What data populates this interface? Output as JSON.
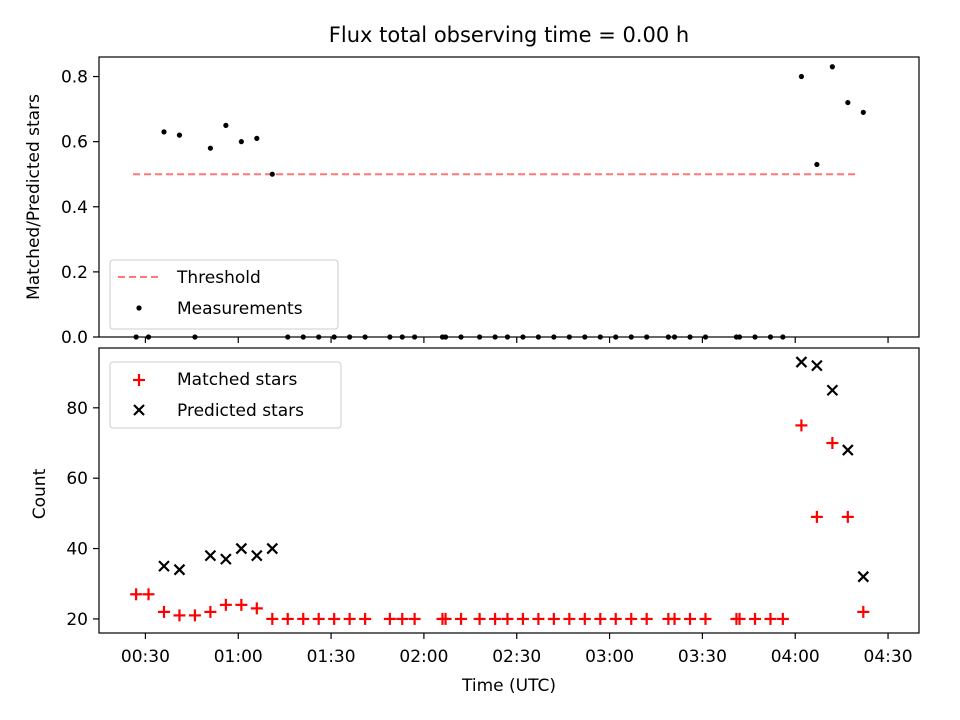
{
  "chart_data": [
    {
      "type": "scatter",
      "title": "Flux total observing time = 0.00 h",
      "xlabel": "",
      "ylabel": "Matched/Predicted stars",
      "ylim": [
        0,
        0.86
      ],
      "yticks": [
        "0.0",
        "0.2",
        "0.4",
        "0.6",
        "0.8"
      ],
      "ytick_values": [
        0,
        0.2,
        0.4,
        0.6,
        0.8
      ],
      "threshold": {
        "name": "Threshold",
        "value": 0.5,
        "x_range": [
          "00:26",
          "04:20"
        ],
        "color": "#ff7777"
      },
      "legend": {
        "placement": "lower-left",
        "entries": [
          "Threshold",
          "Measurements"
        ]
      },
      "series": [
        {
          "name": "Measurements",
          "color": "#000000",
          "points": [
            [
              "00:27",
              0
            ],
            [
              "00:31",
              0
            ],
            [
              "00:36",
              0.63
            ],
            [
              "00:41",
              0.62
            ],
            [
              "00:46",
              0
            ],
            [
              "00:51",
              0.58
            ],
            [
              "00:56",
              0.65
            ],
            [
              "01:01",
              0.6
            ],
            [
              "01:06",
              0.61
            ],
            [
              "01:11",
              0.5
            ],
            [
              "01:16",
              0
            ],
            [
              "01:21",
              0
            ],
            [
              "01:26",
              0
            ],
            [
              "01:31",
              0
            ],
            [
              "01:36",
              0
            ],
            [
              "01:41",
              0
            ],
            [
              "01:49",
              0
            ],
            [
              "01:53",
              0
            ],
            [
              "01:57",
              0
            ],
            [
              "02:06",
              0
            ],
            [
              "02:07",
              0
            ],
            [
              "02:12",
              0
            ],
            [
              "02:18",
              0
            ],
            [
              "02:23",
              0
            ],
            [
              "02:27",
              0
            ],
            [
              "02:32",
              0
            ],
            [
              "02:37",
              0
            ],
            [
              "02:42",
              0
            ],
            [
              "02:47",
              0
            ],
            [
              "02:52",
              0
            ],
            [
              "02:57",
              0
            ],
            [
              "03:02",
              0
            ],
            [
              "03:07",
              0
            ],
            [
              "03:12",
              0
            ],
            [
              "03:19",
              0
            ],
            [
              "03:21",
              0
            ],
            [
              "03:26",
              0
            ],
            [
              "03:31",
              0
            ],
            [
              "03:41",
              0
            ],
            [
              "03:42",
              0
            ],
            [
              "03:47",
              0
            ],
            [
              "03:52",
              0
            ],
            [
              "03:56",
              0
            ],
            [
              "04:02",
              0.8
            ],
            [
              "04:07",
              0.53
            ],
            [
              "04:12",
              0.83
            ],
            [
              "04:17",
              0.72
            ],
            [
              "04:22",
              0.69
            ]
          ]
        }
      ]
    },
    {
      "type": "scatter",
      "title": "",
      "xlabel": "Time (UTC)",
      "ylabel": "Count",
      "ylim": [
        16,
        97
      ],
      "yticks": [
        "20",
        "40",
        "60",
        "80"
      ],
      "ytick_values": [
        20,
        40,
        60,
        80
      ],
      "xlim": [
        "00:15",
        "04:40"
      ],
      "xticks": [
        "00:30",
        "01:00",
        "01:30",
        "02:00",
        "02:30",
        "03:00",
        "03:30",
        "04:00",
        "04:30"
      ],
      "legend": {
        "placement": "upper-left",
        "entries": [
          "Matched stars",
          "Predicted stars"
        ]
      },
      "series": [
        {
          "name": "Matched stars",
          "marker": "+",
          "color": "#ff0000",
          "points": [
            [
              "00:27",
              27
            ],
            [
              "00:31",
              27
            ],
            [
              "00:36",
              22
            ],
            [
              "00:41",
              21
            ],
            [
              "00:46",
              21
            ],
            [
              "00:51",
              22
            ],
            [
              "00:56",
              24
            ],
            [
              "01:01",
              24
            ],
            [
              "01:06",
              23
            ],
            [
              "01:11",
              20
            ],
            [
              "01:16",
              20
            ],
            [
              "01:21",
              20
            ],
            [
              "01:26",
              20
            ],
            [
              "01:31",
              20
            ],
            [
              "01:36",
              20
            ],
            [
              "01:41",
              20
            ],
            [
              "01:49",
              20
            ],
            [
              "01:53",
              20
            ],
            [
              "01:57",
              20
            ],
            [
              "02:06",
              20
            ],
            [
              "02:07",
              20
            ],
            [
              "02:12",
              20
            ],
            [
              "02:18",
              20
            ],
            [
              "02:23",
              20
            ],
            [
              "02:27",
              20
            ],
            [
              "02:32",
              20
            ],
            [
              "02:37",
              20
            ],
            [
              "02:42",
              20
            ],
            [
              "02:47",
              20
            ],
            [
              "02:52",
              20
            ],
            [
              "02:57",
              20
            ],
            [
              "03:02",
              20
            ],
            [
              "03:07",
              20
            ],
            [
              "03:12",
              20
            ],
            [
              "03:19",
              20
            ],
            [
              "03:21",
              20
            ],
            [
              "03:26",
              20
            ],
            [
              "03:31",
              20
            ],
            [
              "03:41",
              20
            ],
            [
              "03:42",
              20
            ],
            [
              "03:47",
              20
            ],
            [
              "03:52",
              20
            ],
            [
              "03:56",
              20
            ],
            [
              "04:02",
              75
            ],
            [
              "04:07",
              49
            ],
            [
              "04:12",
              70
            ],
            [
              "04:17",
              49
            ],
            [
              "04:22",
              22
            ]
          ]
        },
        {
          "name": "Predicted stars",
          "marker": "x",
          "color": "#000000",
          "points": [
            [
              "00:36",
              35
            ],
            [
              "00:41",
              34
            ],
            [
              "00:51",
              38
            ],
            [
              "00:56",
              37
            ],
            [
              "01:01",
              40
            ],
            [
              "01:06",
              38
            ],
            [
              "01:11",
              40
            ],
            [
              "04:02",
              93
            ],
            [
              "04:07",
              92
            ],
            [
              "04:12",
              85
            ],
            [
              "04:17",
              68
            ],
            [
              "04:22",
              32
            ]
          ]
        }
      ]
    }
  ]
}
